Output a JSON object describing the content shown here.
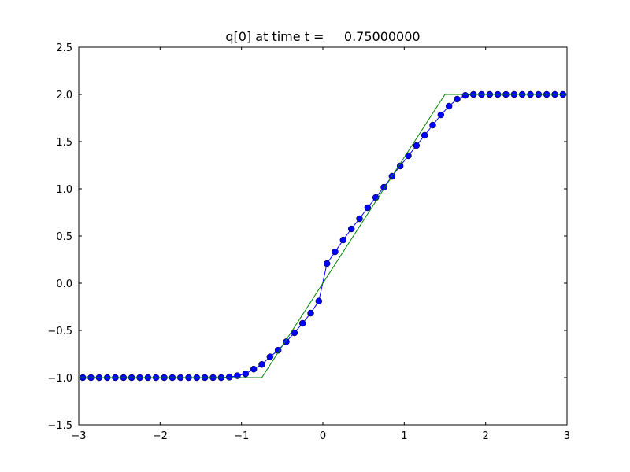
{
  "chart_data": {
    "type": "line",
    "title": "q[0] at time t =     0.75000000",
    "xlim": [
      -3,
      3
    ],
    "ylim": [
      -1.5,
      2.5
    ],
    "xticks": [
      {
        "value": -3,
        "label": "−3"
      },
      {
        "value": -2,
        "label": "−2"
      },
      {
        "value": -1,
        "label": "−1"
      },
      0,
      1,
      2,
      3
    ],
    "yticks": [
      {
        "value": -1.5,
        "label": "−1.5"
      },
      {
        "value": -1,
        "label": "−1.0"
      },
      {
        "value": -0.5,
        "label": "−0.5"
      },
      {
        "value": 0,
        "label": "0.0"
      },
      0.5,
      {
        "value": 1,
        "label": "1.0"
      },
      1.5,
      {
        "value": 2,
        "label": "2.0"
      },
      2.5
    ],
    "series": [
      {
        "color": "#0000ff",
        "marker": "o",
        "x": [
          -2.95,
          -2.85,
          -2.75,
          -2.65,
          -2.55,
          -2.45,
          -2.35,
          -2.25,
          -2.15,
          -2.05,
          -1.95,
          -1.85,
          -1.75,
          -1.65,
          -1.55,
          -1.45,
          -1.35,
          -1.25,
          -1.15,
          -1.05,
          -0.95,
          -0.85,
          -0.75,
          -0.65,
          -0.55,
          -0.45,
          -0.35,
          -0.25,
          -0.15,
          -0.05,
          0.05,
          0.15,
          0.25,
          0.35,
          0.45,
          0.55,
          0.65,
          0.75,
          0.85,
          0.95,
          1.05,
          1.15,
          1.25,
          1.35,
          1.45,
          1.55,
          1.65,
          1.75,
          1.85,
          1.95,
          2.05,
          2.15,
          2.25,
          2.35,
          2.45,
          2.55,
          2.65,
          2.75,
          2.85,
          2.95
        ],
        "values": [
          -1,
          -1,
          -1,
          -1,
          -1,
          -1,
          -1,
          -1,
          -1,
          -1,
          -1,
          -1,
          -1,
          -1,
          -1,
          -1,
          -1,
          -1,
          -0.995,
          -0.98,
          -0.96,
          -0.91,
          -0.86,
          -0.78,
          -0.71,
          -0.62,
          -0.525,
          -0.425,
          -0.317,
          -0.19,
          0.208,
          0.333,
          0.458,
          0.575,
          0.683,
          0.8,
          0.908,
          1.017,
          1.133,
          1.242,
          1.35,
          1.458,
          1.567,
          1.675,
          1.783,
          1.875,
          1.95,
          1.99,
          2,
          2,
          2,
          2,
          2,
          2,
          2,
          2,
          2,
          2,
          2,
          2
        ]
      },
      {
        "color": "#008000",
        "x": [
          -3,
          -0.75,
          1.5,
          3
        ],
        "values": [
          -1,
          -1,
          2,
          2
        ]
      }
    ]
  }
}
